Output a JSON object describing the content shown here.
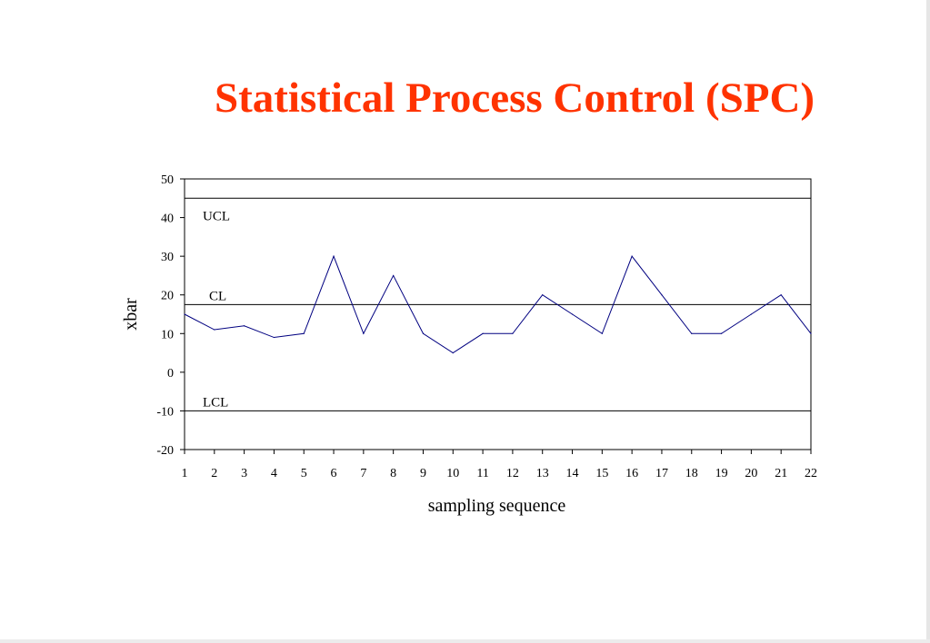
{
  "slide": {
    "title": "Statistical Process Control (SPC)",
    "title_color": "#ff3300"
  },
  "chart_data": {
    "type": "line",
    "title": "",
    "xlabel": "sampling sequence",
    "ylabel": "xbar",
    "categories": [
      1,
      2,
      3,
      4,
      5,
      6,
      7,
      8,
      9,
      10,
      11,
      12,
      13,
      14,
      15,
      16,
      17,
      18,
      19,
      20,
      21,
      22
    ],
    "series": [
      {
        "values": [
          15,
          11,
          12,
          9,
          10,
          30,
          10,
          25,
          10,
          5,
          10,
          10,
          20,
          15,
          10,
          30,
          20,
          10,
          10,
          15,
          20,
          10
        ],
        "color": "#000080"
      }
    ],
    "ylim": [
      -20,
      50
    ],
    "yticks": [
      50,
      40,
      30,
      20,
      10,
      0,
      -10,
      -20
    ],
    "control_lines": [
      {
        "label": "UCL",
        "value": 45
      },
      {
        "label": "CL",
        "value": 17.5
      },
      {
        "label": "LCL",
        "value": -10
      }
    ],
    "grid": false,
    "legend": "none"
  }
}
